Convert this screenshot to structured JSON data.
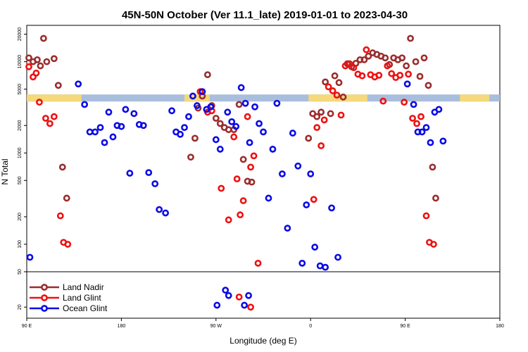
{
  "chart_data": {
    "type": "scatter",
    "title": "45N-50N October (Ver 11.1_late)   2019-01-01 to 2023-04-30",
    "xlabel": "Longitude (deg E)",
    "ylabel": "N Total",
    "x_domain": [
      90,
      450
    ],
    "x_ticks": [
      {
        "value": 90,
        "label": "90 E"
      },
      {
        "value": 180,
        "label": "180"
      },
      {
        "value": 270,
        "label": "90 W"
      },
      {
        "value": 360,
        "label": "0"
      },
      {
        "value": 450,
        "label": "90 E"
      },
      {
        "value": 540,
        "label": "180"
      }
    ],
    "x_domain_full": [
      90,
      540
    ],
    "y_scale": "log",
    "main_panel": {
      "ylim": [
        50,
        25000
      ],
      "y_ticks": [
        {
          "value": 50,
          "label": "50"
        },
        {
          "value": 100,
          "label": "100"
        },
        {
          "value": 200,
          "label": "200"
        },
        {
          "value": 500,
          "label": "500"
        },
        {
          "value": 1000,
          "label": "1000"
        },
        {
          "value": 2000,
          "label": "2000"
        },
        {
          "value": 5000,
          "label": "5000"
        },
        {
          "value": 10000,
          "label": "10000"
        },
        {
          "value": 20000,
          "label": "20000"
        }
      ]
    },
    "lower_panel": {
      "ylim": [
        15,
        50
      ],
      "y_ticks": [
        {
          "value": 20,
          "label": "20"
        },
        {
          "value": 50,
          "label": "50"
        }
      ]
    },
    "land_strip": {
      "y": 4000,
      "land_color": "#f5d97a",
      "ocean_color": "#a8bedc",
      "land_ranges": [
        [
          90,
          142
        ],
        [
          240,
          264
        ],
        [
          358,
          414
        ],
        [
          502,
          530
        ]
      ]
    },
    "legend_position": "bottom-left",
    "series": [
      {
        "name": "Land Nadir",
        "color": "#9b2d2d",
        "points": [
          [
            92,
            11000
          ],
          [
            96,
            10000
          ],
          [
            100,
            10500
          ],
          [
            103,
            9000
          ],
          [
            106,
            18000
          ],
          [
            109,
            10000
          ],
          [
            116,
            10800
          ],
          [
            120,
            5500
          ],
          [
            124,
            700
          ],
          [
            128,
            320
          ],
          [
            246,
            900
          ],
          [
            250,
            1450
          ],
          [
            253,
            3100
          ],
          [
            257,
            4200
          ],
          [
            262,
            7200
          ],
          [
            266,
            3300
          ],
          [
            270,
            2400
          ],
          [
            274,
            2100
          ],
          [
            278,
            1900
          ],
          [
            282,
            1800
          ],
          [
            287,
            1800
          ],
          [
            292,
            3400
          ],
          [
            296,
            850
          ],
          [
            300,
            490
          ],
          [
            304,
            480
          ],
          [
            358,
            1450
          ],
          [
            362,
            2700
          ],
          [
            366,
            2500
          ],
          [
            370,
            2800
          ],
          [
            374,
            6000
          ],
          [
            379,
            2700
          ],
          [
            383,
            7000
          ],
          [
            387,
            5900
          ],
          [
            391,
            4100
          ],
          [
            395,
            9500
          ],
          [
            399,
            8800
          ],
          [
            403,
            9600
          ],
          [
            407,
            10500
          ],
          [
            411,
            10500
          ],
          [
            415,
            11500
          ],
          [
            419,
            12500
          ],
          [
            423,
            12000
          ],
          [
            427,
            11500
          ],
          [
            431,
            11000
          ],
          [
            435,
            9300
          ],
          [
            439,
            11000
          ],
          [
            443,
            10500
          ],
          [
            447,
            11000
          ],
          [
            451,
            9000
          ],
          [
            455,
            18000
          ],
          [
            460,
            10000
          ],
          [
            464,
            6900
          ],
          [
            468,
            11000
          ],
          [
            472,
            5500
          ],
          [
            476,
            700
          ],
          [
            479,
            320
          ]
        ]
      },
      {
        "name": "Land Glint",
        "color": "#ee1111",
        "points": [
          [
            92,
            8800
          ],
          [
            96,
            6800
          ],
          [
            99,
            7500
          ],
          [
            102,
            3600
          ],
          [
            108,
            2400
          ],
          [
            112,
            2100
          ],
          [
            116,
            2500
          ],
          [
            122,
            205
          ],
          [
            125,
            105
          ],
          [
            129,
            100
          ],
          [
            255,
            4700
          ],
          [
            262,
            2800
          ],
          [
            266,
            2900
          ],
          [
            275,
            410
          ],
          [
            282,
            185
          ],
          [
            287,
            1500
          ],
          [
            290,
            520
          ],
          [
            293,
            210
          ],
          [
            296,
            300
          ],
          [
            300,
            2500
          ],
          [
            303,
            700
          ],
          [
            306,
            930
          ],
          [
            310,
            62
          ],
          [
            363,
            310
          ],
          [
            366,
            1900
          ],
          [
            370,
            1200
          ],
          [
            373,
            2300
          ],
          [
            377,
            5300
          ],
          [
            381,
            4800
          ],
          [
            385,
            4300
          ],
          [
            389,
            2600
          ],
          [
            393,
            9000
          ],
          [
            397,
            9500
          ],
          [
            401,
            8600
          ],
          [
            405,
            7300
          ],
          [
            409,
            7000
          ],
          [
            413,
            13500
          ],
          [
            417,
            7200
          ],
          [
            421,
            6800
          ],
          [
            425,
            7100
          ],
          [
            429,
            3700
          ],
          [
            433,
            9000
          ],
          [
            437,
            7400
          ],
          [
            441,
            6700
          ],
          [
            445,
            7100
          ],
          [
            449,
            3600
          ],
          [
            453,
            7300
          ],
          [
            457,
            2400
          ],
          [
            461,
            2100
          ],
          [
            465,
            2500
          ],
          [
            470,
            205
          ],
          [
            473,
            105
          ],
          [
            477,
            100
          ]
        ]
      },
      {
        "name": "Ocean Glint",
        "color": "#0b0be6",
        "points": [
          [
            93,
            72
          ],
          [
            139,
            5700
          ],
          [
            145,
            3400
          ],
          [
            150,
            1700
          ],
          [
            155,
            1700
          ],
          [
            160,
            1900
          ],
          [
            164,
            1300
          ],
          [
            168,
            2800
          ],
          [
            172,
            1500
          ],
          [
            176,
            2000
          ],
          [
            180,
            1950
          ],
          [
            184,
            3000
          ],
          [
            188,
            600
          ],
          [
            192,
            2700
          ],
          [
            197,
            2050
          ],
          [
            201,
            2000
          ],
          [
            206,
            610
          ],
          [
            212,
            460
          ],
          [
            216,
            240
          ],
          [
            222,
            220
          ],
          [
            228,
            2900
          ],
          [
            232,
            1700
          ],
          [
            236,
            1600
          ],
          [
            240,
            1900
          ],
          [
            244,
            2500
          ],
          [
            248,
            4200
          ],
          [
            252,
            3300
          ],
          [
            257,
            4700
          ],
          [
            261,
            3000
          ],
          [
            265,
            3200
          ],
          [
            270,
            1400
          ],
          [
            274,
            1100
          ],
          [
            281,
            2800
          ],
          [
            285,
            2200
          ],
          [
            289,
            1950
          ],
          [
            294,
            5200
          ],
          [
            298,
            3500
          ],
          [
            302,
            1300
          ],
          [
            307,
            3200
          ],
          [
            311,
            2100
          ],
          [
            315,
            1700
          ],
          [
            320,
            320
          ],
          [
            324,
            1100
          ],
          [
            328,
            3500
          ],
          [
            333,
            590
          ],
          [
            338,
            150
          ],
          [
            343,
            1650
          ],
          [
            348,
            720
          ],
          [
            352,
            62
          ],
          [
            356,
            270
          ],
          [
            360,
            590
          ],
          [
            364,
            93
          ],
          [
            369,
            58
          ],
          [
            374,
            56
          ],
          [
            380,
            250
          ],
          [
            386,
            72
          ],
          [
            452,
            5700
          ],
          [
            458,
            3400
          ],
          [
            462,
            1700
          ],
          [
            466,
            1700
          ],
          [
            470,
            1900
          ],
          [
            474,
            1300
          ],
          [
            478,
            2800
          ],
          [
            482,
            3000
          ],
          [
            486,
            1350
          ]
        ],
        "lower_points": [
          [
            271,
            21
          ],
          [
            279,
            31
          ],
          [
            282,
            27
          ],
          [
            297,
            21
          ],
          [
            301,
            27
          ]
        ]
      }
    ],
    "lower_series_points": {
      "Land Glint": [
        [
          292,
          26
        ],
        [
          303,
          20
        ]
      ]
    }
  }
}
